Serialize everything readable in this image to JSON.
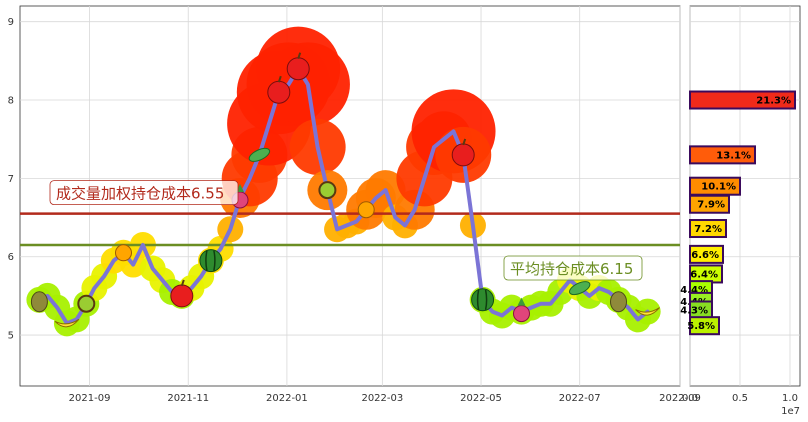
{
  "chart_data": [
    {
      "type": "line",
      "panel": "main",
      "xlim": [
        "2021-07-20",
        "2022-09-01"
      ],
      "ylim": [
        4.35,
        9.2
      ],
      "grid": true,
      "x_tick_labels": [
        "2021-09",
        "2021-11",
        "2022-01",
        "2022-03",
        "2022-05",
        "2022-07",
        "2022-09"
      ],
      "x_tick_dates": [
        "2021-09-01",
        "2021-11-01",
        "2022-01-01",
        "2022-03-01",
        "2022-05-01",
        "2022-07-01",
        "2022-09-01"
      ],
      "y_ticks": [
        5,
        6,
        7,
        8,
        9
      ],
      "series": [
        {
          "color": "#7b74d6",
          "x": [
            "2021-08-01",
            "2021-08-06",
            "2021-08-12",
            "2021-08-18",
            "2021-08-24",
            "2021-08-30",
            "2021-09-04",
            "2021-09-10",
            "2021-09-16",
            "2021-09-22",
            "2021-09-28",
            "2021-10-04",
            "2021-10-10",
            "2021-10-16",
            "2021-10-22",
            "2021-10-28",
            "2021-11-03",
            "2021-11-09",
            "2021-11-15",
            "2021-11-21",
            "2021-11-27",
            "2021-12-03",
            "2021-12-09",
            "2021-12-15",
            "2021-12-21",
            "2021-12-27",
            "2022-01-02",
            "2022-01-08",
            "2022-01-14",
            "2022-01-20",
            "2022-01-26",
            "2022-02-01",
            "2022-02-07",
            "2022-02-13",
            "2022-02-19",
            "2022-02-25",
            "2022-03-03",
            "2022-03-09",
            "2022-03-15",
            "2022-03-21",
            "2022-03-27",
            "2022-04-02",
            "2022-04-08",
            "2022-04-14",
            "2022-04-20",
            "2022-04-26",
            "2022-05-02",
            "2022-05-08",
            "2022-05-14",
            "2022-05-20",
            "2022-05-26",
            "2022-06-01",
            "2022-06-07",
            "2022-06-13",
            "2022-06-19",
            "2022-06-25",
            "2022-07-01",
            "2022-07-07",
            "2022-07-13",
            "2022-07-19",
            "2022-07-25",
            "2022-07-31",
            "2022-08-06",
            "2022-08-12"
          ],
          "y": [
            5.45,
            5.5,
            5.35,
            5.15,
            5.2,
            5.4,
            5.6,
            5.75,
            5.95,
            6.05,
            5.9,
            6.15,
            5.85,
            5.7,
            5.55,
            5.5,
            5.6,
            5.75,
            5.95,
            6.1,
            6.35,
            6.75,
            7.0,
            7.3,
            7.7,
            8.1,
            8.2,
            8.4,
            8.2,
            7.4,
            6.85,
            6.35,
            6.4,
            6.45,
            6.6,
            6.75,
            6.85,
            6.5,
            6.4,
            6.6,
            7.0,
            7.4,
            7.5,
            7.6,
            7.3,
            6.4,
            5.45,
            5.3,
            5.25,
            5.35,
            5.3,
            5.35,
            5.4,
            5.4,
            5.55,
            5.7,
            5.6,
            5.5,
            5.6,
            5.55,
            5.45,
            5.35,
            5.2,
            5.3
          ]
        }
      ],
      "annotations": [
        {
          "text": "成交量加权持仓成本6.55",
          "y": 6.55,
          "color": "#b22a1c"
        },
        {
          "text": "平均持仓成本6.15",
          "y": 6.15,
          "color": "#6b8e23"
        }
      ]
    },
    {
      "type": "bar",
      "orientation": "horizontal",
      "panel": "volume-distribution",
      "xlim": [
        0,
        1.1
      ],
      "x_ticks": [
        0.0,
        0.5,
        1.0
      ],
      "x_tick_labels": [
        "0.0",
        "0.5",
        "1.0"
      ],
      "x_scale_label": "1e7",
      "ylim": [
        4.35,
        9.2
      ],
      "bars": [
        {
          "price": 8.0,
          "value": 1.05,
          "label": "21.3%",
          "color": "#f02a1a"
        },
        {
          "price": 7.3,
          "value": 0.65,
          "label": "13.1%",
          "color": "#ff5c0a"
        },
        {
          "price": 6.9,
          "value": 0.5,
          "label": "10.1%",
          "color": "#ff8c00"
        },
        {
          "price": 6.67,
          "value": 0.39,
          "label": "7.9%",
          "color": "#ffa500"
        },
        {
          "price": 6.36,
          "value": 0.36,
          "label": "7.2%",
          "color": "#ffd700"
        },
        {
          "price": 6.03,
          "value": 0.33,
          "label": "6.6%",
          "color": "#ffee00"
        },
        {
          "price": 5.78,
          "value": 0.32,
          "label": "6.4%",
          "color": "#ccff00"
        },
        {
          "price": 5.58,
          "value": 0.22,
          "label": "4.4%",
          "color": "#aaff00"
        },
        {
          "price": 5.43,
          "value": 0.22,
          "label": "4.4%",
          "color": "#99ee22"
        },
        {
          "price": 5.32,
          "value": 0.22,
          "label": "4.3%",
          "color": "#88dd22"
        },
        {
          "price": 5.12,
          "value": 0.29,
          "label": "5.8%",
          "color": "#bbf000"
        }
      ]
    }
  ]
}
